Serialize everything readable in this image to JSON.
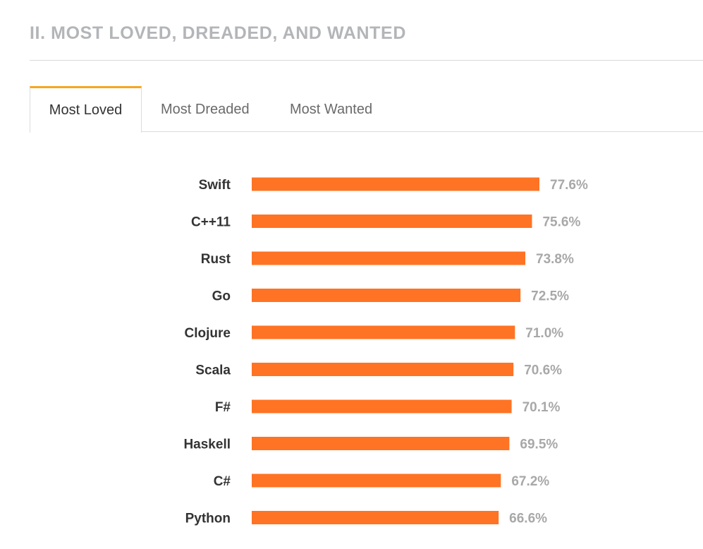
{
  "section": {
    "title": "II. MOST LOVED, DREADED, AND WANTED"
  },
  "tabs": [
    {
      "label": "Most Loved",
      "active": true
    },
    {
      "label": "Most Dreaded",
      "active": false
    },
    {
      "label": "Most Wanted",
      "active": false
    }
  ],
  "colors": {
    "bar": "#ff7324",
    "value_label": "#a8a8a8",
    "category_label": "#333333",
    "tab_active_accent": "#f5a623"
  },
  "chart_data": {
    "type": "bar",
    "orientation": "horizontal",
    "categories": [
      "Swift",
      "C++11",
      "Rust",
      "Go",
      "Clojure",
      "Scala",
      "F#",
      "Haskell",
      "C#",
      "Python"
    ],
    "values": [
      77.6,
      75.6,
      73.8,
      72.5,
      71.0,
      70.6,
      70.1,
      69.5,
      67.2,
      66.6
    ],
    "value_labels": [
      "77.6%",
      "75.6%",
      "73.8%",
      "72.5%",
      "71.0%",
      "70.6%",
      "70.1%",
      "69.5%",
      "67.2%",
      "66.6%"
    ],
    "unit": "%",
    "xlim": [
      0,
      77.6
    ],
    "grid": false,
    "legend": "none",
    "title": "",
    "xlabel": "",
    "ylabel": ""
  }
}
